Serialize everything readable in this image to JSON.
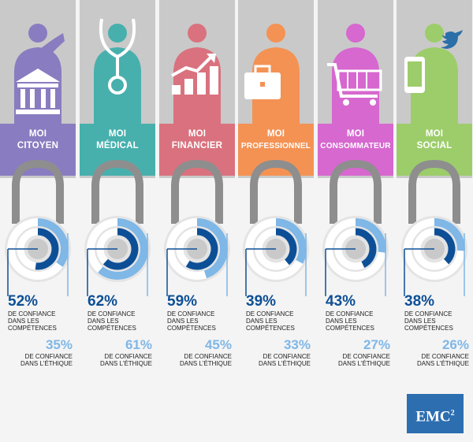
{
  "columns": [
    {
      "line1": "MOI",
      "line2": "CITOYEN",
      "color": "#8a7cc0",
      "pct_competence": "52%",
      "competence_value": 52,
      "competence_caption": [
        "DE CONFIANCE",
        "DANS LES",
        "COMPÉTENCES"
      ],
      "pct_ethique": "35%",
      "ethique_value": 35,
      "ethique_caption": [
        "DE CONFIANCE",
        "DANS L'ÉTHIQUE"
      ],
      "icon": "government-building-icon"
    },
    {
      "line1": "MOI",
      "line2": "MÉDICAL",
      "color": "#47b0ad",
      "pct_competence": "62%",
      "competence_value": 62,
      "competence_caption": [
        "DE CONFIANCE",
        "DANS LES",
        "COMPÉTENCES"
      ],
      "pct_ethique": "61%",
      "ethique_value": 61,
      "ethique_caption": [
        "DE CONFIANCE",
        "DANS L'ÉTHIQUE"
      ],
      "icon": "stethoscope-icon"
    },
    {
      "line1": "MOI",
      "line2": "FINANCIER",
      "color": "#d9727e",
      "pct_competence": "59%",
      "competence_value": 59,
      "competence_caption": [
        "DE CONFIANCE",
        "DANS LES",
        "COMPÉTENCES"
      ],
      "pct_ethique": "45%",
      "ethique_value": 45,
      "ethique_caption": [
        "DE CONFIANCE",
        "DANS L'ÉTHIQUE"
      ],
      "icon": "growth-chart-icon"
    },
    {
      "line1": "MOI",
      "line2": "PROFESSIONNEL",
      "color": "#f49254",
      "pct_competence": "39%",
      "competence_value": 39,
      "competence_caption": [
        "DE CONFIANCE",
        "DANS LES",
        "COMPÉTENCES"
      ],
      "pct_ethique": "33%",
      "ethique_value": 33,
      "ethique_caption": [
        "DE CONFIANCE",
        "DANS L'ÉTHIQUE"
      ],
      "icon": "briefcase-icon"
    },
    {
      "line1": "MOI",
      "line2": "CONSOMMATEUR",
      "color": "#d668cf",
      "pct_competence": "43%",
      "competence_value": 43,
      "competence_caption": [
        "DE CONFIANCE",
        "DANS LES",
        "COMPÉTENCES"
      ],
      "pct_ethique": "27%",
      "ethique_value": 27,
      "ethique_caption": [
        "DE CONFIANCE",
        "DANS L'ÉTHIQUE"
      ],
      "icon": "shopping-cart-icon"
    },
    {
      "line1": "MOI",
      "line2": "SOCIAL",
      "color": "#9ccd6a",
      "pct_competence": "38%",
      "competence_value": 38,
      "competence_caption": [
        "DE CONFIANCE",
        "DANS LES",
        "COMPÉTENCES"
      ],
      "pct_ethique": "26%",
      "ethique_value": 26,
      "ethique_caption": [
        "DE CONFIANCE",
        "DANS L'ÉTHIQUE"
      ],
      "icon": "smartphone-twitter-icon"
    }
  ],
  "logo": {
    "text": "EMC",
    "sup": "2"
  },
  "colors": {
    "dark_blue": "#0d4f96",
    "light_blue": "#7fb7e6",
    "panel_gray": "#c9c9c9",
    "lock_gray": "#8e8e8e"
  }
}
